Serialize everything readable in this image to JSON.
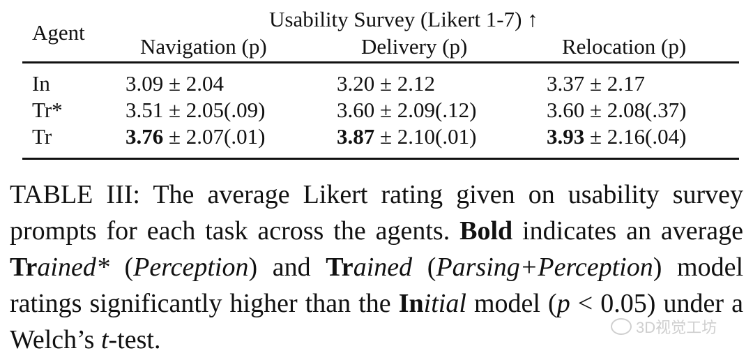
{
  "table": {
    "header_agent": "Agent",
    "header_group": "Usability Survey (Likert 1-7) ↑",
    "columns": [
      "Navigation (p)",
      "Delivery (p)",
      "Relocation (p)"
    ],
    "rows": [
      {
        "agent": "In",
        "cells": [
          {
            "bold": "",
            "rest": "3.09 ± 2.04"
          },
          {
            "bold": "",
            "rest": "3.20 ± 2.12"
          },
          {
            "bold": "",
            "rest": "3.37 ± 2.17"
          }
        ]
      },
      {
        "agent": "Tr*",
        "cells": [
          {
            "bold": "",
            "rest": "3.51 ± 2.05(.09)"
          },
          {
            "bold": "",
            "rest": "3.60 ± 2.09(.12)"
          },
          {
            "bold": "",
            "rest": "3.60 ± 2.08(.37)"
          }
        ]
      },
      {
        "agent": "Tr",
        "cells": [
          {
            "bold": "3.76",
            "rest": " ± 2.07(.01)"
          },
          {
            "bold": "3.87",
            "rest": " ± 2.10(.01)"
          },
          {
            "bold": "3.93",
            "rest": " ± 2.16(.04)"
          }
        ]
      }
    ]
  },
  "caption": {
    "p1": "TABLE III: The average Likert rating given on usability survey prompts for each task across the agents. ",
    "bold1": "Bold",
    "p2": " indicates an average ",
    "tr1_bold": "Tr",
    "tr1_ital": "ained*",
    "p3": " (",
    "perc1": "Perception",
    "p4": ") and ",
    "tr2_bold": "Tr",
    "tr2_ital": "ained",
    "p5": " (",
    "pp": "Parsing+Perception",
    "p6": ") model ratings significantly higher than the ",
    "in_bold": "In",
    "in_ital": "itial",
    "p7": " model (",
    "pvar": "p",
    "p8": " < 0.05) under a Welch’s ",
    "tvar": "t",
    "p9": "-test."
  },
  "watermark": {
    "text": "3D视觉工坊",
    "icon": "wechat-icon"
  }
}
